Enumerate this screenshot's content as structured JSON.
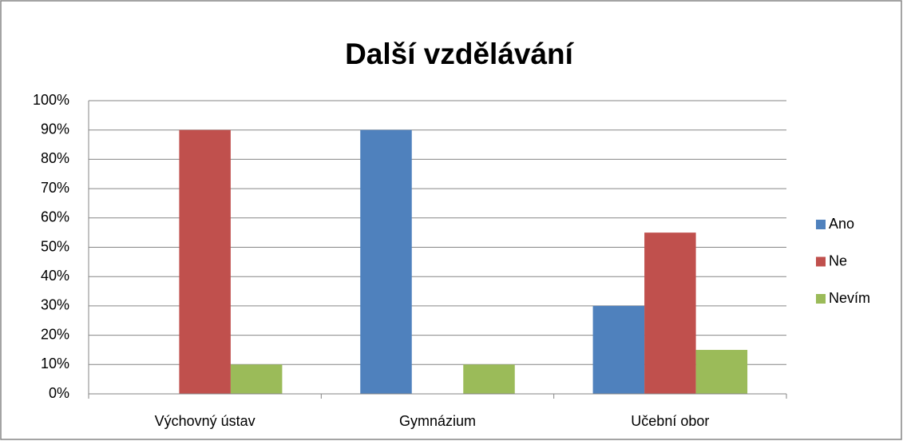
{
  "chart_data": {
    "type": "bar",
    "title": "Další vzdělávání",
    "categories": [
      "Výchovný ústav",
      "Gymnázium",
      "Učební obor"
    ],
    "series": [
      {
        "name": "Ano",
        "color": "#4f81bd",
        "values": [
          0,
          90,
          30
        ]
      },
      {
        "name": "Ne",
        "color": "#c0504d",
        "values": [
          90,
          0,
          55
        ]
      },
      {
        "name": "Nevím",
        "color": "#9bbb59",
        "values": [
          10,
          10,
          15
        ]
      }
    ],
    "ylim": [
      0,
      100
    ],
    "yticks": [
      {
        "value": 0,
        "label": "0%"
      },
      {
        "value": 10,
        "label": "10%"
      },
      {
        "value": 20,
        "label": "20%"
      },
      {
        "value": 30,
        "label": "30%"
      },
      {
        "value": 40,
        "label": "40%"
      },
      {
        "value": 50,
        "label": "50%"
      },
      {
        "value": 60,
        "label": "60%"
      },
      {
        "value": 70,
        "label": "70%"
      },
      {
        "value": 80,
        "label": "80%"
      },
      {
        "value": 90,
        "label": "90%"
      },
      {
        "value": 100,
        "label": "100%"
      }
    ],
    "grid": true,
    "legend": "right"
  }
}
